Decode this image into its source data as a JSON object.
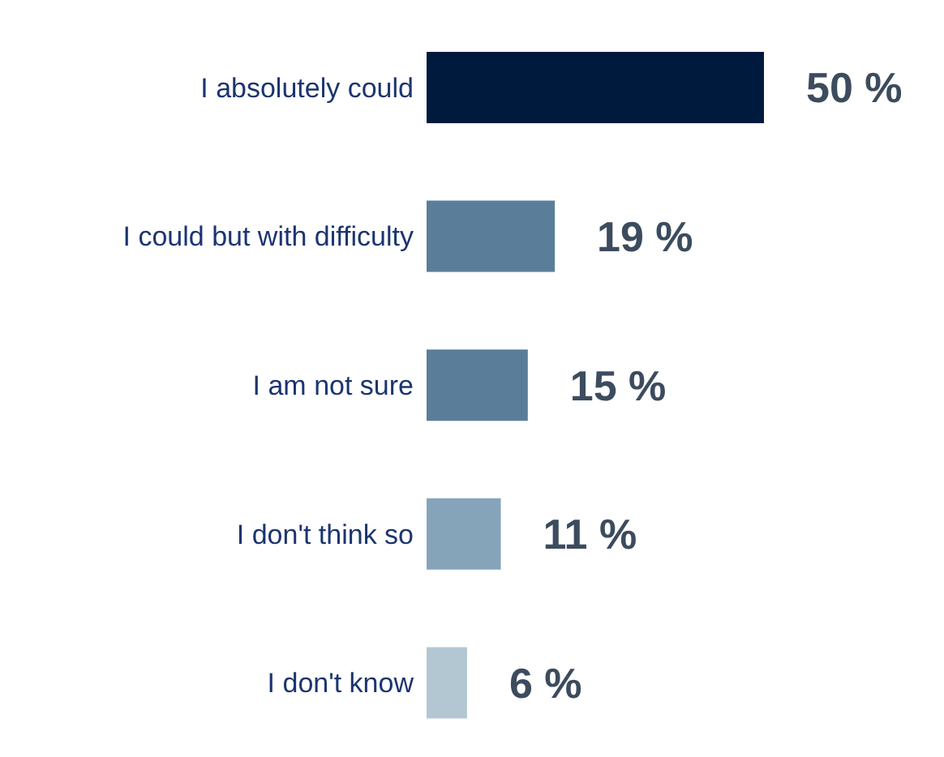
{
  "chart_data": {
    "type": "bar",
    "orientation": "horizontal",
    "categories": [
      "I absolutely could",
      "I could but with difficulty",
      "I am not sure",
      "I don't think so",
      "I don't know"
    ],
    "values": [
      50,
      19,
      15,
      11,
      6
    ],
    "colors": [
      "#001a3e",
      "#5a7e99",
      "#5a7e99",
      "#85a4ba",
      "#b3c7d3"
    ],
    "value_labels": [
      "50 %",
      "19 %",
      "15 %",
      "11 %",
      "6 %"
    ]
  }
}
